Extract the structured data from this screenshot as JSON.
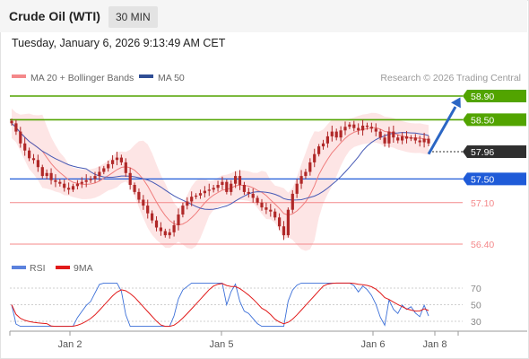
{
  "header": {
    "title": "Crude Oil (WTI)",
    "timeframe": "30 MIN",
    "datetime": "Tuesday, January 6, 2026 9:13:49 AM CET"
  },
  "legend": {
    "ma20_label": "MA 20 + Bollinger Bands",
    "ma50_label": "MA 50",
    "credit": "Research © 2026 Trading Central",
    "rsi_label": "RSI",
    "rsi_ma_label": "9MA"
  },
  "colors": {
    "up_level": "#52a400",
    "support": "#1f5bd8",
    "pivot_line": "#1f4a9a",
    "lower_level": "#f4888a",
    "last_price": "#2f2f2f",
    "candle": "#b02828",
    "bollinger_fill": "#fde1e1",
    "ma20": "#f07d7d",
    "ma50": "#4659b5",
    "rsi": "#3b6fd8",
    "rsi_ma": "#e11a1a",
    "arrow": "#2b66c4"
  },
  "chart_data": [
    {
      "type": "candlestick",
      "title": "Crude Oil (WTI)",
      "timeframe": "30 MIN",
      "ylim": [
        56.2,
        59.1
      ],
      "x_ticks": [
        "Jan 2",
        "Jan 5",
        "Jan 6",
        "Jan 8"
      ],
      "levels": [
        {
          "value": 58.9,
          "label": "58.90",
          "kind": "resistance"
        },
        {
          "value": 58.5,
          "label": "58.50",
          "kind": "resistance"
        },
        {
          "value": 57.96,
          "label": "57.96",
          "kind": "last"
        },
        {
          "value": 57.5,
          "label": "57.50",
          "kind": "pivot"
        },
        {
          "value": 57.1,
          "label": "57.10",
          "kind": "support"
        },
        {
          "value": 56.4,
          "label": "56.40",
          "kind": "support"
        }
      ],
      "forecast": {
        "from": 57.92,
        "to": 58.9
      },
      "close": [
        58.44,
        58.3,
        58.1,
        57.98,
        57.85,
        57.82,
        57.7,
        57.55,
        57.6,
        57.48,
        57.45,
        57.42,
        57.35,
        57.32,
        57.38,
        57.42,
        57.45,
        57.48,
        57.5,
        57.55,
        57.62,
        57.68,
        57.75,
        57.82,
        57.86,
        57.78,
        57.6,
        57.4,
        57.28,
        57.15,
        57.05,
        56.92,
        56.8,
        56.68,
        56.62,
        56.55,
        56.6,
        56.72,
        56.9,
        57.05,
        57.12,
        57.2,
        57.22,
        57.26,
        57.3,
        57.32,
        57.35,
        57.4,
        57.45,
        57.28,
        57.42,
        57.55,
        57.4,
        57.28,
        57.25,
        57.18,
        57.1,
        57.02,
        56.98,
        56.95,
        56.85,
        56.7,
        56.55,
        56.98,
        57.25,
        57.42,
        57.55,
        57.62,
        57.78,
        57.92,
        58.05,
        58.1,
        58.22,
        58.3,
        58.2,
        58.32,
        58.38,
        58.42,
        58.36,
        58.32,
        58.4,
        58.38,
        58.35,
        58.3,
        58.2,
        58.1,
        58.3,
        58.2,
        58.15,
        58.22,
        58.18,
        58.2,
        58.15,
        58.12,
        58.18,
        58.1
      ],
      "bollinger": {
        "upper_max": 58.55,
        "lower_min": 56.4
      },
      "ma20": "smooth average of close",
      "ma50": "smooth average of close"
    },
    {
      "type": "line",
      "title": "RSI",
      "series": [
        {
          "name": "RSI"
        },
        {
          "name": "9MA"
        }
      ],
      "ylim": [
        20,
        80
      ],
      "y_ticks": [
        70,
        50,
        30
      ],
      "x_ticks": [
        "Jan 2",
        "Jan 5",
        "Jan 6",
        "Jan 8"
      ]
    }
  ]
}
